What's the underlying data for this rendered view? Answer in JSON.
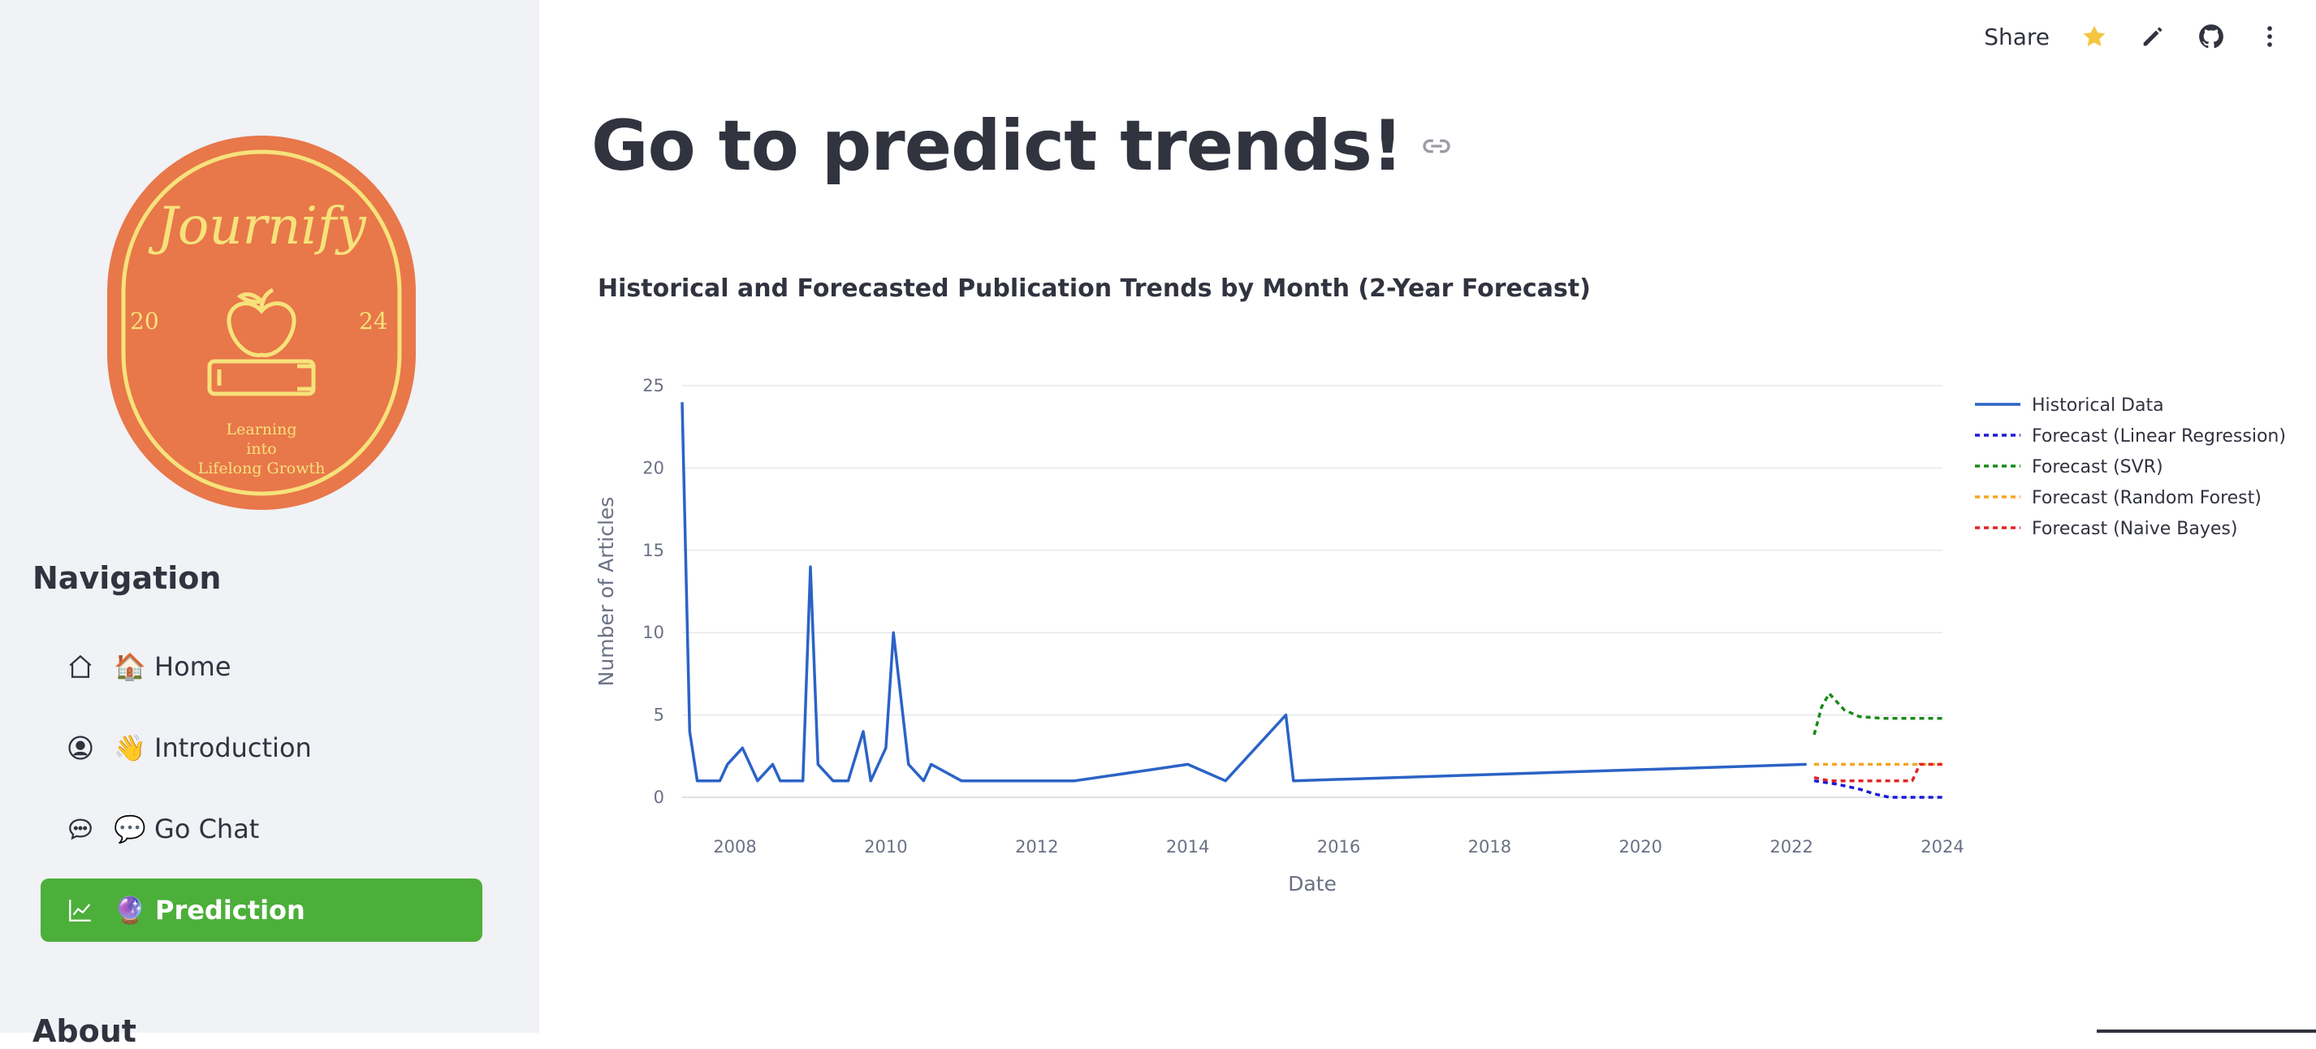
{
  "header": {
    "share_label": "Share",
    "icons": [
      "star-icon",
      "edit-icon",
      "github-icon",
      "more-icon"
    ]
  },
  "sidebar": {
    "logo": {
      "title": "Journify",
      "year_left": "20",
      "year_right": "24",
      "tagline_lines": [
        "Learning",
        "into",
        "Lifelong Growth"
      ],
      "colors": {
        "bg": "#e8774a",
        "ring": "#f6e27a"
      }
    },
    "navigation_title": "Navigation",
    "items": [
      {
        "label": "🏠 Home",
        "icon": "home-icon"
      },
      {
        "label": "👋 Introduction",
        "icon": "user-circle-icon"
      },
      {
        "label": "💬 Go Chat",
        "icon": "chat-icon"
      },
      {
        "label": "🔮 Prediction",
        "icon": "chart-line-icon",
        "active": true
      }
    ],
    "about_title": "About",
    "active_color": "#4caf3a"
  },
  "main": {
    "title": "Go to predict trends!",
    "chart_title": "Historical and Forecasted Publication Trends by Month (2-Year Forecast)"
  },
  "chart_data": {
    "type": "line",
    "title": "Historical and Forecasted Publication Trends by Month (2-Year Forecast)",
    "xlabel": "Date",
    "ylabel": "Number of Articles",
    "xlim": [
      2007.3,
      2024.0
    ],
    "ylim": [
      0,
      25
    ],
    "x_ticks": [
      2008,
      2010,
      2012,
      2014,
      2016,
      2018,
      2020,
      2022,
      2024
    ],
    "y_ticks": [
      0,
      5,
      10,
      15,
      20,
      25
    ],
    "grid": true,
    "legend_position": "right",
    "series": [
      {
        "name": "Historical Data",
        "color": "#2b63c6",
        "dash": "solid",
        "points": [
          [
            2007.3,
            24
          ],
          [
            2007.4,
            4
          ],
          [
            2007.5,
            1
          ],
          [
            2007.7,
            1
          ],
          [
            2007.8,
            1
          ],
          [
            2007.9,
            2
          ],
          [
            2008.0,
            2.5
          ],
          [
            2008.1,
            3
          ],
          [
            2008.3,
            1
          ],
          [
            2008.4,
            1.5
          ],
          [
            2008.5,
            2
          ],
          [
            2008.6,
            1
          ],
          [
            2008.8,
            1
          ],
          [
            2008.9,
            1
          ],
          [
            2009.0,
            14
          ],
          [
            2009.1,
            2
          ],
          [
            2009.3,
            1
          ],
          [
            2009.5,
            1
          ],
          [
            2009.7,
            4
          ],
          [
            2009.8,
            1
          ],
          [
            2010.0,
            3
          ],
          [
            2010.1,
            10
          ],
          [
            2010.3,
            2
          ],
          [
            2010.5,
            1
          ],
          [
            2010.6,
            2
          ],
          [
            2011.0,
            1
          ],
          [
            2012.5,
            1
          ],
          [
            2014.0,
            2
          ],
          [
            2014.5,
            1
          ],
          [
            2015.3,
            5
          ],
          [
            2015.4,
            1
          ],
          [
            2022.2,
            2
          ]
        ]
      },
      {
        "name": "Forecast (Linear Regression)",
        "color": "#1a1ad6",
        "dash": "dotted",
        "points": [
          [
            2022.3,
            1
          ],
          [
            2022.6,
            0.8
          ],
          [
            2022.9,
            0.5
          ],
          [
            2023.1,
            0.2
          ],
          [
            2023.3,
            0
          ],
          [
            2024.0,
            0
          ]
        ]
      },
      {
        "name": "Forecast (SVR)",
        "color": "#1a8a1a",
        "dash": "dotted",
        "points": [
          [
            2022.3,
            3.8
          ],
          [
            2022.4,
            5.5
          ],
          [
            2022.5,
            6.3
          ],
          [
            2022.7,
            5.3
          ],
          [
            2022.9,
            4.9
          ],
          [
            2023.2,
            4.8
          ],
          [
            2024.0,
            4.8
          ]
        ]
      },
      {
        "name": "Forecast (Random Forest)",
        "color": "#f2a623",
        "dash": "dotted",
        "points": [
          [
            2022.3,
            2
          ],
          [
            2024.0,
            2
          ]
        ]
      },
      {
        "name": "Forecast (Naive Bayes)",
        "color": "#e02525",
        "dash": "dotted",
        "points": [
          [
            2022.3,
            1.2
          ],
          [
            2022.5,
            1
          ],
          [
            2023.6,
            1
          ],
          [
            2023.7,
            2
          ],
          [
            2024.0,
            2
          ]
        ]
      }
    ]
  }
}
